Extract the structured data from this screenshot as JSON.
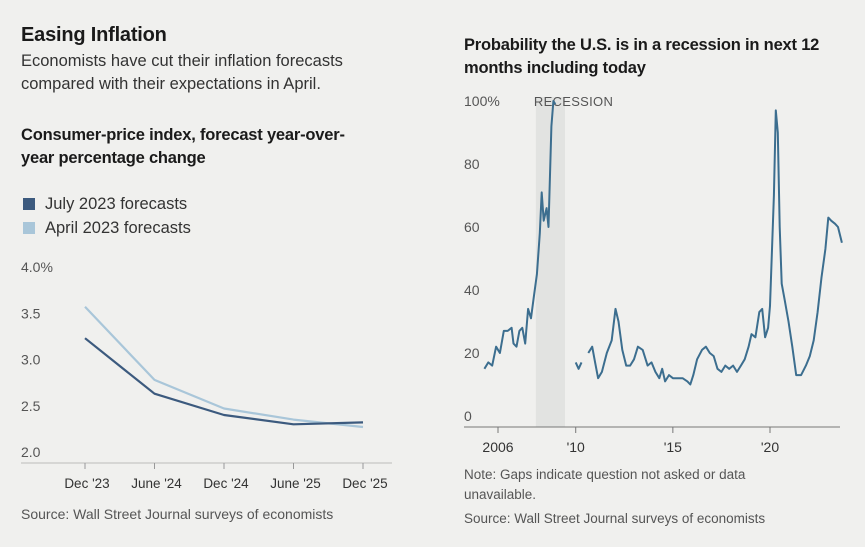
{
  "left": {
    "title": "Easing Inflation",
    "dek": [
      "Economists have cut their inflation forecasts",
      "compared with their expectations in April."
    ],
    "chart_title": [
      "Consumer-price index, forecast year-over-",
      "year percentage change"
    ],
    "source": "Source: Wall Street Journal surveys of economists"
  },
  "right": {
    "chart_title": [
      "Probability the U.S. is in a recession in next 12",
      "months including today"
    ],
    "note": [
      "Note: Gaps indicate question not asked or data",
      "unavailable."
    ],
    "source": "Source: Wall Street Journal surveys of economists"
  },
  "chart_data": [
    {
      "type": "line",
      "categories": [
        "Dec '23",
        "June '24",
        "Dec '24",
        "June '25",
        "Dec '25"
      ],
      "y_ticks": [
        "4.0%",
        "3.5",
        "3.0",
        "2.5",
        "2.0"
      ],
      "ylim": [
        2.0,
        4.0
      ],
      "series": [
        {
          "name": "July 2023 forecasts",
          "color": "#3c5a7e",
          "values": [
            3.23,
            2.63,
            2.4,
            2.3,
            2.32
          ]
        },
        {
          "name": "April 2023 forecasts",
          "color": "#a9c6d9",
          "values": [
            3.57,
            2.78,
            2.47,
            2.35,
            2.27
          ]
        }
      ],
      "legend": "top-left",
      "grid": false
    },
    {
      "type": "line",
      "x_ticks": [
        "2006",
        "'10",
        "'15",
        "'20"
      ],
      "y_ticks": [
        "100%",
        "80",
        "60",
        "40",
        "20",
        "0"
      ],
      "ylim": [
        0,
        100
      ],
      "xlim": [
        2005,
        2023.8
      ],
      "annotation": {
        "label": "RECESSION",
        "start": 2007.95,
        "end": 2009.45
      },
      "series": [
        {
          "color": "#3c6e8f",
          "segments": [
            [
              [
                2005.3,
                15
              ],
              [
                2005.5,
                17
              ],
              [
                2005.7,
                16
              ],
              [
                2005.9,
                22
              ],
              [
                2006.1,
                20
              ],
              [
                2006.3,
                27
              ],
              [
                2006.5,
                27
              ],
              [
                2006.7,
                28
              ],
              [
                2006.8,
                23
              ],
              [
                2006.95,
                22
              ],
              [
                2007.1,
                27
              ],
              [
                2007.25,
                28
              ],
              [
                2007.4,
                23
              ],
              [
                2007.55,
                34
              ],
              [
                2007.7,
                31
              ],
              [
                2007.85,
                38
              ],
              [
                2008.0,
                45
              ],
              [
                2008.15,
                58
              ],
              [
                2008.25,
                71
              ],
              [
                2008.35,
                62
              ],
              [
                2008.5,
                66
              ],
              [
                2008.6,
                60
              ],
              [
                2008.75,
                92
              ],
              [
                2008.85,
                100
              ],
              [
                2008.95,
                99
              ]
            ],
            [
              [
                2010.0,
                17
              ],
              [
                2010.15,
                15
              ],
              [
                2010.3,
                17
              ]
            ],
            [
              [
                2010.65,
                20
              ],
              [
                2010.85,
                22
              ],
              [
                2011.0,
                17
              ],
              [
                2011.15,
                12
              ],
              [
                2011.35,
                14
              ],
              [
                2011.6,
                20
              ],
              [
                2011.85,
                24
              ],
              [
                2012.05,
                34
              ],
              [
                2012.2,
                30
              ],
              [
                2012.4,
                21
              ],
              [
                2012.6,
                16
              ],
              [
                2012.8,
                16
              ],
              [
                2013.0,
                18
              ],
              [
                2013.2,
                22
              ],
              [
                2013.45,
                21
              ],
              [
                2013.7,
                16
              ],
              [
                2013.9,
                17
              ],
              [
                2014.1,
                14
              ],
              [
                2014.3,
                12
              ],
              [
                2014.45,
                15
              ],
              [
                2014.6,
                11
              ],
              [
                2014.8,
                13
              ],
              [
                2015.0,
                12
              ],
              [
                2015.25,
                12
              ],
              [
                2015.5,
                12
              ],
              [
                2015.75,
                11
              ],
              [
                2015.9,
                10
              ],
              [
                2016.05,
                13
              ],
              [
                2016.25,
                18
              ],
              [
                2016.5,
                21
              ],
              [
                2016.7,
                22
              ],
              [
                2016.9,
                20
              ],
              [
                2017.1,
                19
              ],
              [
                2017.3,
                15
              ],
              [
                2017.5,
                14
              ],
              [
                2017.7,
                16
              ],
              [
                2017.9,
                15
              ],
              [
                2018.1,
                16
              ],
              [
                2018.3,
                14
              ],
              [
                2018.5,
                16
              ],
              [
                2018.7,
                18
              ],
              [
                2018.9,
                22
              ],
              [
                2019.05,
                26
              ],
              [
                2019.25,
                25
              ],
              [
                2019.45,
                33
              ],
              [
                2019.6,
                34
              ],
              [
                2019.75,
                25
              ],
              [
                2019.9,
                28
              ],
              [
                2020.0,
                35
              ],
              [
                2020.1,
                52
              ],
              [
                2020.2,
                70
              ],
              [
                2020.3,
                97
              ],
              [
                2020.4,
                90
              ],
              [
                2020.5,
                60
              ],
              [
                2020.6,
                42
              ],
              [
                2020.75,
                37
              ],
              [
                2020.95,
                30
              ],
              [
                2021.15,
                22
              ],
              [
                2021.35,
                13
              ],
              [
                2021.6,
                13
              ],
              [
                2021.85,
                16
              ],
              [
                2022.05,
                19
              ],
              [
                2022.25,
                24
              ],
              [
                2022.45,
                33
              ],
              [
                2022.65,
                44
              ],
              [
                2022.85,
                53
              ],
              [
                2023.0,
                63
              ],
              [
                2023.15,
                62
              ],
              [
                2023.35,
                61
              ],
              [
                2023.5,
                60
              ],
              [
                2023.7,
                55
              ]
            ]
          ]
        }
      ],
      "grid": false
    }
  ]
}
